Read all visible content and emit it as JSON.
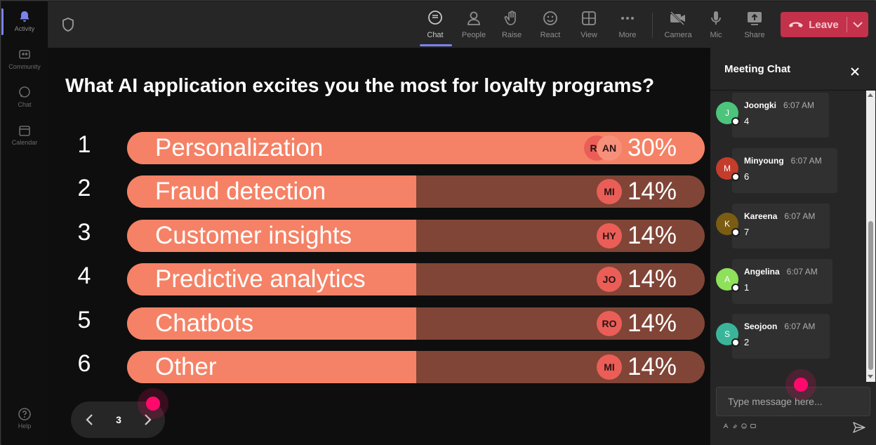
{
  "rail": {
    "items": [
      {
        "label": "Activity",
        "icon": "bell-icon",
        "active": true
      },
      {
        "label": "Community",
        "icon": "community-icon"
      },
      {
        "label": "Chat",
        "icon": "chat-icon"
      },
      {
        "label": "Calendar",
        "icon": "calendar-icon"
      }
    ],
    "help_label": "Help"
  },
  "toolbar": {
    "buttons": [
      {
        "label": "Chat",
        "icon": "chat-icon",
        "selected": true
      },
      {
        "label": "People",
        "icon": "people-icon"
      },
      {
        "label": "Raise",
        "icon": "raise-hand-icon"
      },
      {
        "label": "React",
        "icon": "react-icon"
      },
      {
        "label": "View",
        "icon": "view-grid-icon"
      },
      {
        "label": "More",
        "icon": "more-icon"
      },
      {
        "label": "Camera",
        "icon": "camera-off-icon"
      },
      {
        "label": "Mic",
        "icon": "mic-icon"
      },
      {
        "label": "Share",
        "icon": "share-icon"
      }
    ],
    "leave_label": "Leave"
  },
  "poll": {
    "question": "What AI application excites you the most for loyalty programs?",
    "options": [
      {
        "rank": "1",
        "label": "Personalization",
        "percent": "30%",
        "value": 0.3,
        "avatars": [
          "RY",
          "AN"
        ]
      },
      {
        "rank": "2",
        "label": "Fraud detection",
        "percent": "14%",
        "value": 0.14,
        "avatars": [
          "MI"
        ]
      },
      {
        "rank": "3",
        "label": "Customer insights",
        "percent": "14%",
        "value": 0.14,
        "avatars": [
          "HY"
        ]
      },
      {
        "rank": "4",
        "label": "Predictive analytics",
        "percent": "14%",
        "value": 0.14,
        "avatars": [
          "JO"
        ]
      },
      {
        "rank": "5",
        "label": "Chatbots",
        "percent": "14%",
        "value": 0.14,
        "avatars": [
          "RO"
        ]
      },
      {
        "rank": "6",
        "label": "Other",
        "percent": "14%",
        "value": 0.14,
        "avatars": [
          "MI"
        ]
      }
    ],
    "colors": {
      "fill": "#f58266",
      "track": "#804537",
      "avatar": "#ea5e57"
    }
  },
  "pager": {
    "page": "3"
  },
  "chat": {
    "title": "Meeting Chat",
    "messages": [
      {
        "initial": "J",
        "name": "Joongki",
        "time": "6:07 AM",
        "text": "4",
        "color": "#4cc47c"
      },
      {
        "initial": "M",
        "name": "Minyoung",
        "time": "6:07 AM",
        "text": "6",
        "color": "#c43c2c"
      },
      {
        "initial": "K",
        "name": "Kareena",
        "time": "6:07 AM",
        "text": "7",
        "color": "#7a5c12"
      },
      {
        "initial": "A",
        "name": "Angelina",
        "time": "6:07 AM",
        "text": "1",
        "color": "#8fe05a"
      },
      {
        "initial": "S",
        "name": "Seojoon",
        "time": "6:07 AM",
        "text": "2",
        "color": "#3bb59a"
      }
    ],
    "compose_placeholder": "Type message here..."
  }
}
